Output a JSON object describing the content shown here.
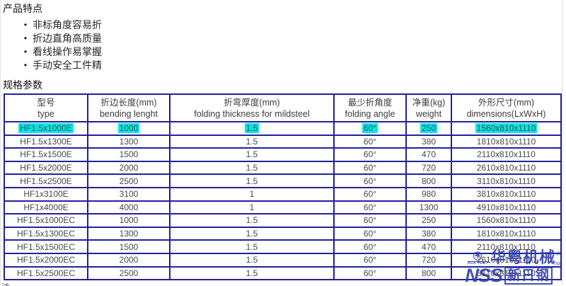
{
  "page": {
    "features_title": "产品特点",
    "features": [
      "非标角度容易折",
      "折边直角高质量",
      "看线操作易掌握",
      "手动安全工件精"
    ],
    "specs_title": "规格参数",
    "partial_note": "注"
  },
  "table": {
    "headers": [
      {
        "zh": "型号",
        "en": "type"
      },
      {
        "zh": "折边长度(mm)",
        "en": "bending lenght"
      },
      {
        "zh": "折弯厚度(mm)",
        "en": "folding thickness for mildsteel"
      },
      {
        "zh": "最少折角度",
        "en": "folding angle"
      },
      {
        "zh": "净重(kg)",
        "en": "weight"
      },
      {
        "zh": "外形尺寸(mm)",
        "en": "dimensions(LxWxH)"
      }
    ],
    "rows": [
      {
        "highlighted": true,
        "cells": [
          "HF1.5x1000E",
          "1000",
          "1.5",
          "60°",
          "250",
          "1560x810x1110"
        ]
      },
      {
        "highlighted": false,
        "cells": [
          "HF1.5x1300E",
          "1300",
          "1.5",
          "60°",
          "380",
          "1810x810x1110"
        ]
      },
      {
        "highlighted": false,
        "cells": [
          "HF1.5x1500E",
          "1500",
          "1.5",
          "60°",
          "470",
          "2110x810x1110"
        ]
      },
      {
        "highlighted": false,
        "cells": [
          "HF1.5x2000E",
          "2000",
          "1.5",
          "60°",
          "720",
          "2610x810x1110"
        ]
      },
      {
        "highlighted": false,
        "cells": [
          "HF1.5x2500E",
          "2500",
          "1.5",
          "60°",
          "800",
          "3110x810x1110"
        ]
      },
      {
        "highlighted": false,
        "cells": [
          "HF1x3100E",
          "3100",
          "1",
          "60°",
          "980",
          "3810x810x1110"
        ]
      },
      {
        "highlighted": false,
        "cells": [
          "HF1x4000E",
          "4000",
          "1",
          "60°",
          "1300",
          "4910x810x1110"
        ]
      },
      {
        "highlighted": false,
        "cells": [
          "HF1.5x1000EC",
          "1000",
          "1.5",
          "60°",
          "250",
          "1560x810x1110"
        ]
      },
      {
        "highlighted": false,
        "cells": [
          "HF1.5x1300EC",
          "1300",
          "1.5",
          "60°",
          "380",
          "1810x810x1110"
        ]
      },
      {
        "highlighted": false,
        "cells": [
          "HF1.5x1500EC",
          "1500",
          "1.5",
          "60°",
          "470",
          "2110x810x1110"
        ]
      },
      {
        "highlighted": false,
        "cells": [
          "HF1.5x2000EC",
          "2000",
          "1.5",
          "60°",
          "720",
          "2610x810x1110"
        ]
      },
      {
        "highlighted": false,
        "cells": [
          "HF1.5x2500EC",
          "2500",
          "1.5",
          "60°",
          "800",
          "3110x810x1110"
        ]
      }
    ]
  },
  "watermark": {
    "logo_small_text": "HUA YUET",
    "brand_zh": "华粤机械",
    "reg_mark": "®",
    "nss": "NSS",
    "nss_zh": "新日钢",
    "tm_mark": "TM"
  },
  "colors": {
    "table_border": "#21219a",
    "highlight": "#00e8e8",
    "watermark_blue": "#2b3aad",
    "table_text": "#484848"
  }
}
